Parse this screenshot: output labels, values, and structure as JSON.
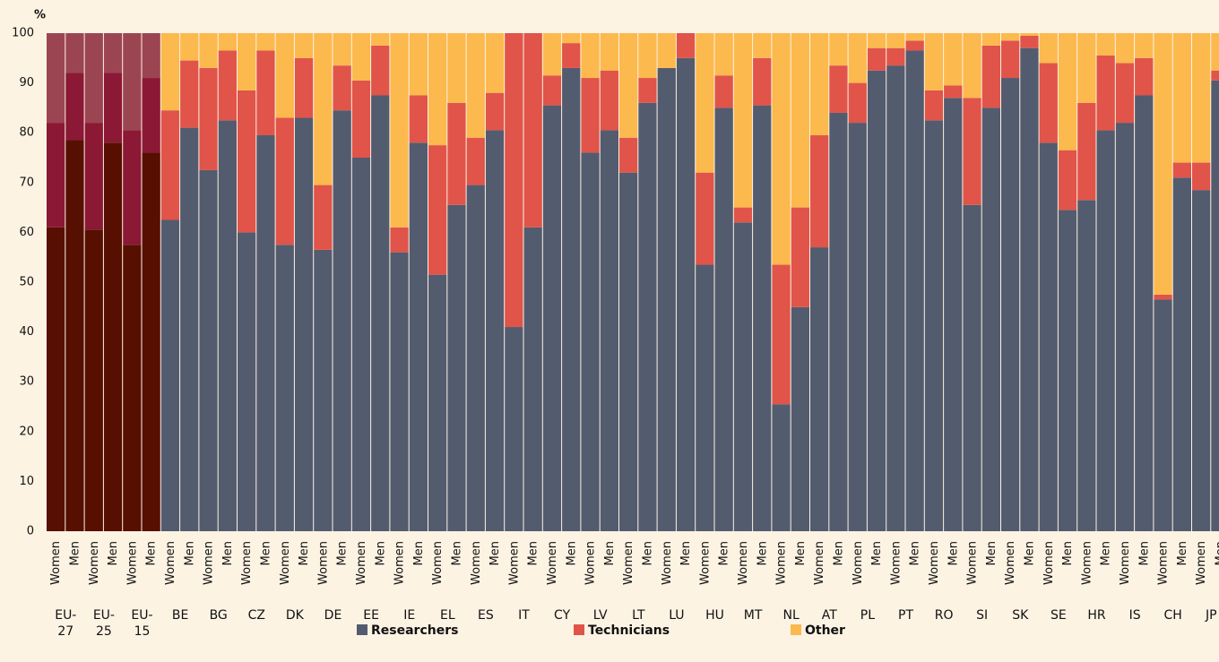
{
  "chart_data": {
    "type": "stacked_bar",
    "y_label": "%",
    "categories": [
      "Women",
      "Men",
      "Women",
      "Men",
      "Women",
      "Men",
      "Women",
      "Men",
      "Women",
      "Men",
      "Women",
      "Men",
      "Women",
      "Men",
      "Women",
      "Men",
      "Women",
      "Men",
      "Women",
      "Men",
      "Women",
      "Men",
      "Women",
      "Men",
      "Women",
      "Men",
      "Women",
      "Men",
      "Women",
      "Men",
      "Women",
      "Men",
      "Women",
      "Men",
      "Women",
      "Men",
      "Women",
      "Men",
      "Women",
      "Men",
      "Women",
      "Men",
      "Women",
      "Men",
      "Women",
      "Men",
      "Women",
      "Men",
      "Women",
      "Men",
      "Women",
      "Men",
      "Women",
      "Men",
      "Women",
      "Men",
      "Women",
      "Men",
      "Women",
      "Men",
      "Women",
      "Men"
    ],
    "groups": [
      "EU-27",
      "EU-25",
      "EU-15",
      "BE",
      "BG",
      "CZ",
      "DK",
      "DE",
      "EE",
      "IE",
      "EL",
      "ES",
      "IT",
      "CY",
      "LV",
      "LT",
      "LU",
      "HU",
      "MT",
      "NL",
      "AT",
      "PL",
      "PT",
      "RO",
      "SI",
      "SK",
      "SE",
      "HR",
      "IS",
      "CH",
      "JP"
    ],
    "highlight": [
      true,
      true,
      true,
      false,
      false,
      false,
      false,
      false,
      false,
      false,
      false,
      false,
      false,
      false,
      false,
      false,
      false,
      false,
      false,
      false,
      false,
      false,
      false,
      false,
      false,
      false,
      false,
      false,
      false,
      false,
      false
    ],
    "series": [
      {
        "name": "Researchers",
        "color": "#535b6f",
        "highlight_color": "#560f01",
        "values": [
          61,
          78.5,
          60.5,
          78,
          57.5,
          76,
          62.5,
          81,
          72.5,
          82.5,
          60,
          79.5,
          57.5,
          83,
          56.5,
          84.5,
          75,
          87.5,
          56,
          78,
          51.5,
          65.5,
          69.5,
          80.5,
          41,
          61,
          85.5,
          93,
          76,
          80.5,
          72,
          86,
          93,
          95,
          53.5,
          85,
          62,
          85.5,
          25.5,
          45,
          57,
          84,
          82,
          92.5,
          93.5,
          96.5,
          82.5,
          87,
          65.5,
          85,
          91,
          97,
          78,
          64.5,
          66.5,
          80.5,
          82,
          87.5,
          46.5,
          71,
          68.5,
          90.5
        ]
      },
      {
        "name": "Technicians",
        "color": "#e0544a",
        "highlight_color": "#8b1835",
        "values": [
          21,
          13.5,
          21.5,
          14,
          23,
          15,
          22,
          13.5,
          20.5,
          14,
          28.5,
          17,
          25.5,
          12,
          13,
          9,
          15.5,
          10,
          5,
          9.5,
          26,
          20.5,
          9.5,
          7.5,
          59,
          39,
          6,
          5,
          15,
          12,
          7,
          5,
          0,
          5,
          18.5,
          6.5,
          3,
          9.5,
          28,
          20,
          22.5,
          9.5,
          8,
          4.5,
          3.5,
          2,
          6,
          2.5,
          21.5,
          12.5,
          7.5,
          2.5,
          16,
          12,
          19.5,
          15,
          12,
          7.5,
          1,
          3,
          5.5,
          2
        ]
      },
      {
        "name": "Other",
        "color": "#fcb94e",
        "highlight_color": "#9c4552",
        "values": [
          18,
          8,
          18,
          8,
          19.5,
          9,
          15.5,
          5.5,
          7,
          3.5,
          11.5,
          3.5,
          17,
          5,
          30.5,
          6.5,
          9.5,
          2.5,
          39,
          12.5,
          22.5,
          14,
          21,
          12,
          0,
          0,
          8.5,
          2,
          9,
          7.5,
          21,
          9,
          7,
          0,
          28,
          8.5,
          35,
          5,
          46.5,
          35,
          20.5,
          6.5,
          10,
          3,
          3,
          1.5,
          11.5,
          10.5,
          13,
          2.5,
          1.5,
          0.5,
          6,
          23.5,
          14,
          4.5,
          6,
          5,
          52.5,
          26,
          26,
          7.5
        ]
      }
    ],
    "ylim": [
      0,
      100
    ],
    "yticks": [
      0,
      10,
      20,
      30,
      40,
      50,
      60,
      70,
      80,
      90,
      100
    ]
  }
}
